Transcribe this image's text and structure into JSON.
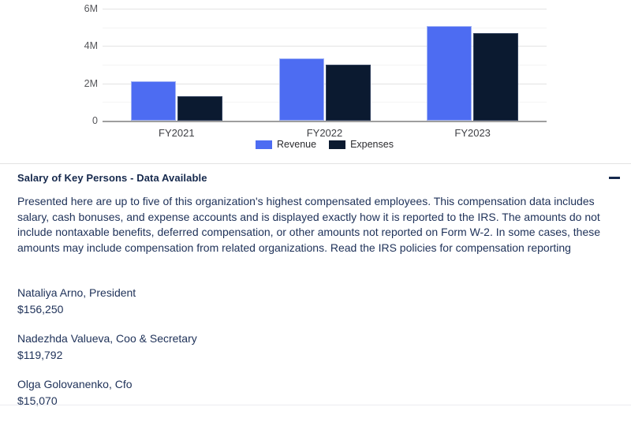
{
  "chart_data": {
    "type": "bar",
    "categories": [
      "FY2021",
      "FY2022",
      "FY2023"
    ],
    "series": [
      {
        "name": "Revenue",
        "color": "#4d6cf2",
        "border": "#a3b4f5",
        "values": [
          2100000,
          3350000,
          5050000
        ]
      },
      {
        "name": "Expenses",
        "color": "#0b1a30",
        "border": "#33425e",
        "values": [
          1300000,
          3000000,
          4700000
        ]
      }
    ],
    "title": "",
    "xlabel": "",
    "ylabel": "",
    "ylim": [
      0,
      6000000
    ],
    "ytick_values": [
      0,
      2000000,
      4000000,
      6000000
    ],
    "ytick_labels": [
      "0",
      "2M",
      "4M",
      "6M"
    ],
    "minor_tick_values": [
      1000000,
      3000000,
      5000000
    ],
    "grid": true,
    "legend_position": "bottom"
  },
  "section": {
    "title": "Salary of Key Persons - Data Available",
    "description": "Presented here are up to five of this organization's highest compensated employees. This compensation data includes salary, cash bonuses, and expense accounts and is displayed exactly how it is reported to the IRS. The amounts do not include nontaxable benefits, deferred compensation, or other amounts not reported on Form W-2. In some cases, these amounts may include compensation from related organizations. Read the IRS policies for compensation reporting",
    "people": [
      {
        "name": "Nataliya Arno, President",
        "amount": "$156,250"
      },
      {
        "name": "Nadezhda Valueva, Coo & Secretary",
        "amount": "$119,792"
      },
      {
        "name": "Olga Golovanenko, Cfo",
        "amount": "$15,070"
      }
    ]
  },
  "colors": {
    "grid_major": "#e3e3e3",
    "grid_minor": "#f4f4f4",
    "baseline": "#9e9e9e",
    "heading": "#16294d",
    "body_text": "#20335a"
  }
}
